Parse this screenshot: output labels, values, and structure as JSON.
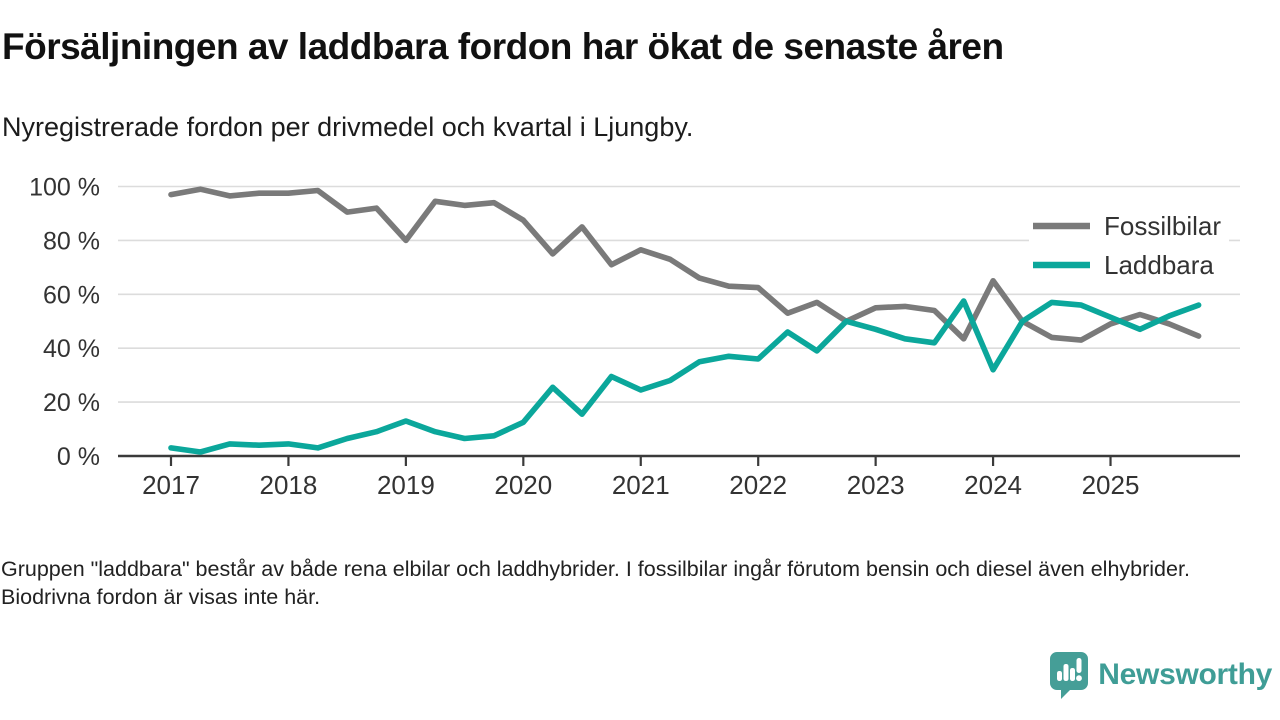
{
  "header": {
    "title": "Försäljningen av laddbara fordon har ökat de senaste åren",
    "subtitle": "Nyregistrerade fordon per drivmedel och kvartal i Ljungby."
  },
  "chart_data": {
    "type": "line",
    "categories": [
      "2017 K1",
      "2017 K2",
      "2017 K3",
      "2017 K4",
      "2018 K1",
      "2018 K2",
      "2018 K3",
      "2018 K4",
      "2019 K1",
      "2019 K2",
      "2019 K3",
      "2019 K4",
      "2020 K1",
      "2020 K2",
      "2020 K3",
      "2020 K4",
      "2021 K1",
      "2021 K2",
      "2021 K3",
      "2021 K4",
      "2022 K1",
      "2022 K2",
      "2022 K3",
      "2022 K4",
      "2023 K1",
      "2023 K2",
      "2023 K3",
      "2023 K4",
      "2024 K1",
      "2024 K2",
      "2024 K3",
      "2024 K4",
      "2025 K1",
      "2025 K2",
      "2025 K3",
      "2025 K4"
    ],
    "series": [
      {
        "name": "Fossilbilar",
        "color": "#7a7a7a",
        "values": [
          97,
          99,
          96.5,
          97.5,
          97.5,
          98.5,
          90.5,
          92,
          80,
          94.5,
          93,
          94,
          87.5,
          75,
          85,
          71,
          76.5,
          73,
          66,
          63,
          62.5,
          53,
          57,
          50,
          55,
          55.5,
          54,
          43.5,
          65,
          50,
          44,
          43,
          49,
          52.5,
          49,
          44.5
        ]
      },
      {
        "name": "Laddbara",
        "color": "#0ba79b",
        "values": [
          3,
          1.5,
          4.5,
          4,
          4.5,
          3,
          6.5,
          9,
          13,
          9,
          6.5,
          7.5,
          12.5,
          25.5,
          15.5,
          29.5,
          24.5,
          28,
          35,
          37,
          36,
          46,
          39,
          50,
          47,
          43.5,
          42,
          57.5,
          32,
          50,
          57,
          56,
          51.5,
          47,
          52,
          56
        ]
      }
    ],
    "title": "Försäljningen av laddbara fordon har ökat de senaste åren",
    "xlabel": "",
    "ylabel": "",
    "ylim": [
      0,
      100
    ],
    "y_ticks": [
      0,
      20,
      40,
      60,
      80,
      100
    ],
    "y_tick_labels": [
      "0 %",
      "20 %",
      "40 %",
      "60 %",
      "80 %",
      "100 %"
    ],
    "x_tick_labels": [
      "2017",
      "2018",
      "2019",
      "2020",
      "2021",
      "2022",
      "2023",
      "2024",
      "2025"
    ],
    "grid": "horizontal",
    "legend_position": "top-right"
  },
  "footer": {
    "note": "Gruppen \"laddbara\" består av både rena elbilar och laddhybrider. I fossilbilar ingår förutom bensin och diesel även elhybrider. Biodrivna fordon är visas inte här."
  },
  "branding": {
    "logo_text": "Newsworthy",
    "logo_icon": "newsworthy-speech-bubble-chart-icon",
    "logo_color": "#459e97"
  },
  "colors": {
    "fossil_line": "#7a7a7a",
    "laddbara_line": "#0ba79b",
    "axis": "#3a3a3a",
    "gridline": "#dcdcdc",
    "tick_text": "#333333"
  }
}
